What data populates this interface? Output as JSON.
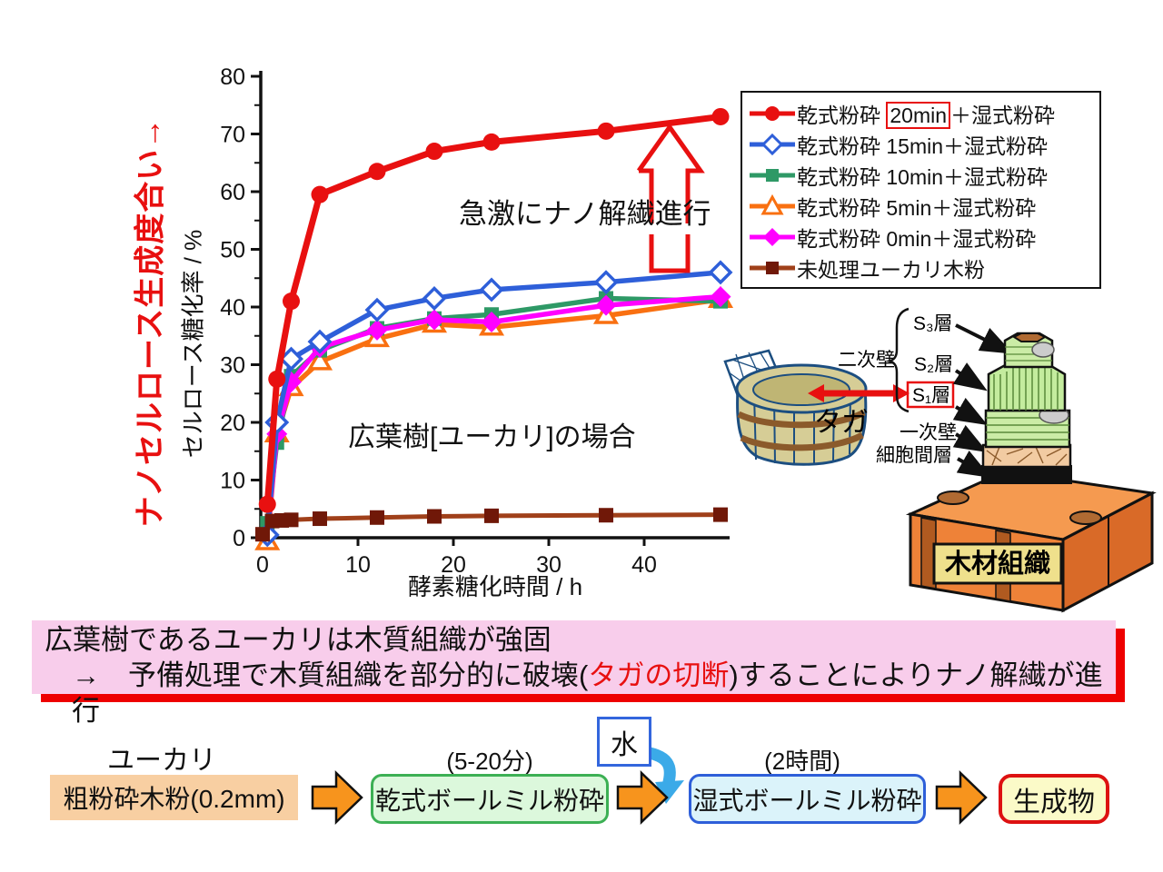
{
  "accent_colors": {
    "red": "#e81010",
    "blue": "#2e5fd9",
    "green": "#2e9966",
    "orange": "#f97011",
    "magenta": "#ff00ff",
    "untreated_line": "#a0401a",
    "untreated_marker": "#701808",
    "banner_bg": "#f8cdeb",
    "banner_shadow": "#ee0000",
    "flow_arrow": "#f7941d",
    "water_arrow": "#3baae8"
  },
  "chart_data": {
    "type": "line",
    "xlabel": "酵素糖化時間 / h",
    "ylabel": "セルロース糖化率 / %",
    "ylabel_outer": "ナノセルロース生成度合い→",
    "annotation": "急激にナノ解繊進行",
    "inner_label": "広葉樹[ユーカリ]の場合",
    "xlim": [
      0,
      50
    ],
    "ylim": [
      0,
      80
    ],
    "x_ticks": [
      0,
      10,
      20,
      30,
      40
    ],
    "y_ticks": [
      0,
      10,
      20,
      30,
      40,
      50,
      60,
      70,
      80
    ],
    "grid": false,
    "legend_position": "upper right",
    "series": [
      {
        "name": "乾式粉砕 20min＋湿式粉砕",
        "color": "#e81010",
        "marker": "circle",
        "line_width": 7,
        "x": [
          0.5,
          1.5,
          3,
          6,
          12,
          18,
          24,
          36,
          48
        ],
        "y": [
          5.8,
          27.5,
          41,
          59.5,
          63.5,
          67,
          68.6,
          70.5,
          73
        ]
      },
      {
        "name": "乾式粉砕 15min＋湿式粉砕",
        "color": "#2e5fd9",
        "marker": "open-diamond",
        "line_width": 5.5,
        "x": [
          0.5,
          1.5,
          3,
          6,
          12,
          18,
          24,
          36,
          48
        ],
        "y": [
          0.5,
          20,
          31,
          34,
          39.5,
          41.5,
          43,
          44.3,
          46
        ]
      },
      {
        "name": "乾式粉砕 10min＋湿式粉砕",
        "color": "#2e9966",
        "marker": "square",
        "line_width": 5.5,
        "x": [
          0.5,
          1.5,
          3,
          6,
          12,
          18,
          24,
          36,
          48
        ],
        "y": [
          2.5,
          16.5,
          28,
          32.5,
          36.3,
          38,
          38.7,
          41.5,
          41
        ]
      },
      {
        "name": "乾式粉砕 5min＋湿式粉砕",
        "color": "#f97011",
        "marker": "open-triangle",
        "line_width": 5.5,
        "x": [
          0.5,
          1.5,
          3,
          6,
          12,
          18,
          24,
          36,
          48
        ],
        "y": [
          -0.7,
          18,
          26,
          30.5,
          34.5,
          37,
          36.5,
          38.5,
          41.3
        ]
      },
      {
        "name": "乾式粉砕 0min＋湿式粉砕",
        "color": "#ff00ff",
        "marker": "diamond",
        "line_width": 5.5,
        "x": [
          0.5,
          1.5,
          3,
          6,
          12,
          18,
          24,
          36,
          48
        ],
        "y": [
          0.3,
          18,
          27,
          33,
          36,
          37.8,
          37.4,
          40.3,
          41.8
        ]
      },
      {
        "name": "未処理ユーカリ木粉",
        "color": "#a0401a",
        "marker_color": "#701808",
        "marker": "square",
        "line_width": 5,
        "x": [
          0,
          1,
          2,
          3,
          6,
          12,
          18,
          24,
          36,
          48
        ],
        "y": [
          0.6,
          2.9,
          3.0,
          3.1,
          3.3,
          3.5,
          3.7,
          3.8,
          3.9,
          4.0
        ]
      }
    ]
  },
  "legend": {
    "items": [
      {
        "pre": "乾式粉砕 ",
        "time": "20min",
        "post": "＋湿式粉砕",
        "boxed": true,
        "marker": "circle",
        "color": "#e81010",
        "line_color": "#e81010"
      },
      {
        "pre": "乾式粉砕 ",
        "time": "15min",
        "post": "＋湿式粉砕",
        "boxed": false,
        "marker": "open-diamond",
        "color": "#2e5fd9",
        "line_color": "#2e5fd9"
      },
      {
        "pre": "乾式粉砕 ",
        "time": "10min",
        "post": "＋湿式粉砕",
        "boxed": false,
        "marker": "square",
        "color": "#2e9966",
        "line_color": "#2e9966"
      },
      {
        "pre": "乾式粉砕 ",
        "time": "5min",
        "post": "＋湿式粉砕",
        "boxed": false,
        "marker": "open-triangle",
        "color": "#f97011",
        "line_color": "#f97011"
      },
      {
        "pre": "乾式粉砕 ",
        "time": "0min",
        "post": "＋湿式粉砕",
        "boxed": false,
        "marker": "diamond",
        "color": "#ff00ff",
        "line_color": "#ff00ff"
      },
      {
        "pre": "未処理ユーカリ木粉",
        "time": "",
        "post": "",
        "boxed": false,
        "marker": "square",
        "color": "#701808",
        "line_color": "#a0401a"
      }
    ]
  },
  "illustration": {
    "secondary_wall": "二次壁",
    "s3": "S₃層",
    "s2": "S₂層",
    "s1": "S₁層",
    "primary_wall": "一次壁",
    "middle_lamella": "細胞間層",
    "hoop": "タガ",
    "wood_tissue": "木材組織"
  },
  "banner": {
    "line1": "広葉樹であるユーカリは木質組織が強固",
    "line2_prefix": "→　予備処理で木質組織を部分的に破壊(",
    "line2_red": "タガの切断",
    "line2_suffix": ")することによりナノ解繊が進行"
  },
  "flow": {
    "source_label": "ユーカリ",
    "raw_box": "粗粉砕木粉(0.2mm)",
    "dry_time": "(5-20分)",
    "dry_box": "乾式ボールミル粉砕",
    "water": "水",
    "wet_time": "(2時間)",
    "wet_box": "湿式ボールミル粉砕",
    "product_box": "生成物"
  }
}
